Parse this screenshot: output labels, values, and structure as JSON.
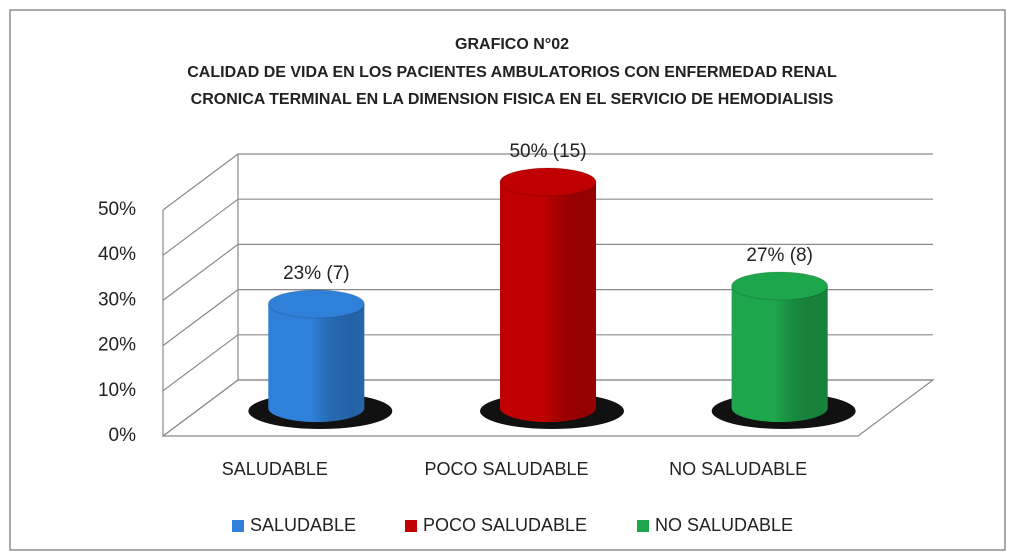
{
  "chart_data": {
    "type": "cylinder",
    "title": [
      "GRAFICO N°02",
      "CALIDAD DE VIDA EN LOS PACIENTES AMBULATORIOS CON ENFERMEDAD  RENAL",
      "CRONICA TERMINAL EN LA DIMENSION FISICA EN EL SERVICIO DE HEMODIALISIS"
    ],
    "categories": [
      "SALUDABLE",
      "POCO SALUDABLE",
      "NO SALUDABLE"
    ],
    "values": [
      23,
      50,
      27
    ],
    "value_labels": [
      "23% (7)",
      "50% (15)",
      "27% (8)"
    ],
    "colors": [
      "#2f80d8",
      "#c00000",
      "#1ea64c"
    ],
    "ylim": [
      0,
      50
    ],
    "yticks": [
      {
        "value": 0,
        "label": "0%"
      },
      {
        "value": 10,
        "label": "10%"
      },
      {
        "value": 20,
        "label": "20%"
      },
      {
        "value": 30,
        "label": "30%"
      },
      {
        "value": 40,
        "label": "40%"
      },
      {
        "value": 50,
        "label": "50%"
      }
    ],
    "grid": true,
    "legend": "bottom"
  }
}
